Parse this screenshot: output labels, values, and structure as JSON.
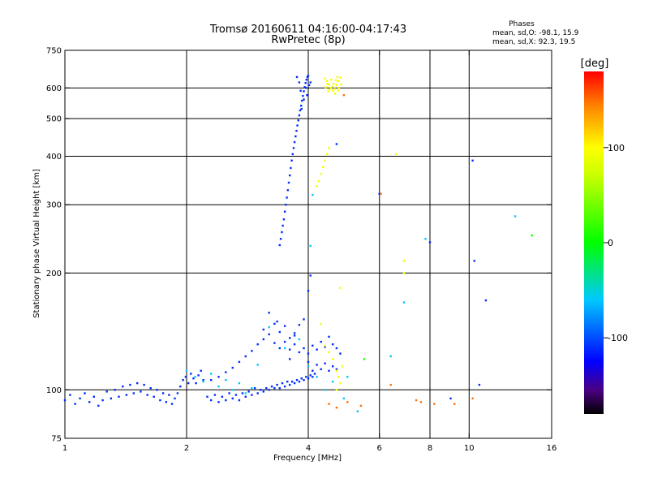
{
  "chart_data": {
    "type": "scatter",
    "title": "Tromsø 20160611 04:16:00-04:17:43",
    "subtitle": "RwPretec (8p)",
    "xlabel": "Frequency [MHz]",
    "ylabel": "Stationary phase Virtual Height [km]",
    "x_scale": "log",
    "y_scale": "log",
    "xlim": [
      1,
      16
    ],
    "ylim": [
      75,
      750
    ],
    "x_ticks": [
      {
        "value": 1,
        "label": "1"
      },
      {
        "value": 2,
        "label": "2"
      },
      {
        "value": 4,
        "label": "4"
      },
      {
        "value": 6,
        "label": "6"
      },
      {
        "value": 8,
        "label": "8"
      },
      {
        "value": 10,
        "label": "10"
      },
      {
        "value": 16,
        "label": "16"
      }
    ],
    "y_ticks": [
      {
        "value": 75,
        "label": "75"
      },
      {
        "value": 100,
        "label": "100"
      },
      {
        "value": 200,
        "label": "200"
      },
      {
        "value": 300,
        "label": "300"
      },
      {
        "value": 400,
        "label": "400"
      },
      {
        "value": 500,
        "label": "500"
      },
      {
        "value": 600,
        "label": "600"
      },
      {
        "value": 750,
        "label": "750"
      }
    ],
    "grid": true,
    "grid_x": [
      2,
      4,
      6,
      8,
      10
    ],
    "grid_y": [
      100,
      200,
      300,
      400,
      500,
      600
    ],
    "phase_stats": {
      "title": "Phases",
      "o_line": "mean, sd,O: -98.1, 15.9",
      "x_line": "mean, sd,X:  92.3, 19.5"
    },
    "colorbar": {
      "label": "[deg]",
      "range": [
        -180,
        180
      ],
      "ticks": [
        {
          "value": 100,
          "label": "100"
        },
        {
          "value": 0,
          "label": "0"
        },
        {
          "value": -100,
          "label": "-100"
        }
      ],
      "stops": [
        {
          "value": -180,
          "color": "#000000"
        },
        {
          "value": -155,
          "color": "#4b0082"
        },
        {
          "value": -125,
          "color": "#0000ff"
        },
        {
          "value": -60,
          "color": "#00c8ff"
        },
        {
          "value": 0,
          "color": "#00ff00"
        },
        {
          "value": 70,
          "color": "#c8ff00"
        },
        {
          "value": 100,
          "color": "#ffff00"
        },
        {
          "value": 145,
          "color": "#ff7f00"
        },
        {
          "value": 180,
          "color": "#ff0000"
        }
      ]
    },
    "series": [
      {
        "mode": "O",
        "phase_deg": -110,
        "points": [
          [
            1.0,
            94
          ],
          [
            1.03,
            97
          ],
          [
            1.06,
            92
          ],
          [
            1.09,
            95
          ],
          [
            1.12,
            98
          ],
          [
            1.15,
            93
          ],
          [
            1.18,
            96
          ],
          [
            1.21,
            91
          ],
          [
            1.24,
            94
          ],
          [
            1.27,
            99
          ],
          [
            1.3,
            95
          ],
          [
            1.33,
            100
          ],
          [
            1.36,
            96
          ],
          [
            1.39,
            102
          ],
          [
            1.42,
            97
          ],
          [
            1.45,
            103
          ],
          [
            1.48,
            98
          ],
          [
            1.51,
            104
          ],
          [
            1.54,
            99
          ],
          [
            1.57,
            103
          ],
          [
            1.6,
            97
          ],
          [
            1.63,
            101
          ],
          [
            1.66,
            96
          ],
          [
            1.69,
            100
          ],
          [
            1.72,
            94
          ],
          [
            1.75,
            98
          ],
          [
            1.78,
            93
          ],
          [
            1.81,
            97
          ],
          [
            1.84,
            92
          ],
          [
            1.87,
            95
          ],
          [
            1.9,
            98
          ],
          [
            1.93,
            102
          ],
          [
            1.96,
            106
          ],
          [
            1.99,
            108
          ],
          [
            2.02,
            104
          ],
          [
            2.05,
            110
          ],
          [
            2.08,
            107
          ],
          [
            2.11,
            104
          ],
          [
            2.14,
            109
          ],
          [
            2.17,
            112
          ],
          [
            2.2,
            106
          ],
          [
            2.25,
            96
          ],
          [
            2.3,
            94
          ],
          [
            2.35,
            97
          ],
          [
            2.4,
            93
          ],
          [
            2.45,
            96
          ],
          [
            2.5,
            94
          ],
          [
            2.55,
            98
          ],
          [
            2.6,
            95
          ],
          [
            2.65,
            97
          ],
          [
            2.7,
            94
          ],
          [
            2.75,
            98
          ],
          [
            2.8,
            96
          ],
          [
            2.85,
            99
          ],
          [
            2.9,
            97
          ],
          [
            2.95,
            101
          ],
          [
            3.0,
            98
          ],
          [
            3.05,
            100
          ],
          [
            3.1,
            99
          ],
          [
            3.15,
            101
          ],
          [
            3.2,
            100
          ],
          [
            3.25,
            102
          ],
          [
            3.3,
            101
          ],
          [
            3.35,
            103
          ],
          [
            3.4,
            101
          ],
          [
            3.45,
            104
          ],
          [
            3.5,
            102
          ],
          [
            3.55,
            105
          ],
          [
            3.6,
            103
          ],
          [
            3.65,
            105
          ],
          [
            3.7,
            104
          ],
          [
            3.75,
            106
          ],
          [
            3.8,
            105
          ],
          [
            3.85,
            107
          ],
          [
            3.9,
            106
          ],
          [
            3.95,
            108
          ],
          [
            4.0,
            107
          ],
          [
            4.05,
            109
          ],
          [
            4.1,
            108
          ],
          [
            4.15,
            110
          ],
          [
            2.3,
            106
          ],
          [
            2.4,
            108
          ],
          [
            2.5,
            111
          ],
          [
            2.6,
            114
          ],
          [
            2.7,
            118
          ],
          [
            2.8,
            122
          ],
          [
            2.9,
            126
          ],
          [
            3.0,
            131
          ],
          [
            3.1,
            135
          ],
          [
            3.2,
            139
          ],
          [
            3.3,
            132
          ],
          [
            3.4,
            128
          ],
          [
            3.5,
            133
          ],
          [
            3.6,
            127
          ],
          [
            3.7,
            131
          ],
          [
            3.8,
            125
          ],
          [
            3.2,
            158
          ],
          [
            3.3,
            148
          ],
          [
            3.4,
            141
          ],
          [
            3.5,
            146
          ],
          [
            3.6,
            136
          ],
          [
            3.7,
            140
          ],
          [
            3.9,
            128
          ],
          [
            4.0,
            124
          ],
          [
            4.1,
            130
          ],
          [
            4.2,
            127
          ],
          [
            4.3,
            133
          ],
          [
            4.4,
            129
          ],
          [
            4.5,
            137
          ],
          [
            4.6,
            131
          ],
          [
            4.7,
            128
          ],
          [
            4.8,
            124
          ],
          [
            4.0,
            118
          ],
          [
            4.1,
            112
          ],
          [
            4.2,
            116
          ],
          [
            4.3,
            113
          ],
          [
            4.4,
            117
          ],
          [
            4.5,
            112
          ],
          [
            4.6,
            115
          ],
          [
            4.7,
            113
          ],
          [
            3.9,
            152
          ],
          [
            4.0,
            180
          ],
          [
            4.05,
            197
          ],
          [
            3.6,
            120
          ],
          [
            3.7,
            138
          ],
          [
            3.8,
            147
          ],
          [
            3.35,
            150
          ],
          [
            3.1,
            143
          ],
          [
            3.4,
            236
          ],
          [
            3.42,
            245
          ],
          [
            3.44,
            255
          ],
          [
            3.46,
            265
          ],
          [
            3.48,
            275
          ],
          [
            3.5,
            288
          ],
          [
            3.52,
            300
          ],
          [
            3.54,
            313
          ],
          [
            3.56,
            327
          ],
          [
            3.58,
            342
          ],
          [
            3.6,
            357
          ],
          [
            3.62,
            373
          ],
          [
            3.64,
            390
          ],
          [
            3.66,
            405
          ],
          [
            3.68,
            420
          ],
          [
            3.7,
            435
          ],
          [
            3.72,
            450
          ],
          [
            3.74,
            465
          ],
          [
            3.76,
            480
          ],
          [
            3.78,
            495
          ],
          [
            3.8,
            510
          ],
          [
            3.82,
            525
          ],
          [
            3.84,
            540
          ],
          [
            3.86,
            556
          ],
          [
            3.88,
            572
          ],
          [
            3.9,
            588
          ],
          [
            3.92,
            603
          ],
          [
            3.94,
            618
          ],
          [
            3.96,
            630
          ],
          [
            3.98,
            640
          ],
          [
            4.0,
            645
          ],
          [
            3.95,
            600
          ],
          [
            3.9,
            560
          ],
          [
            3.85,
            530
          ],
          [
            3.97,
            575
          ],
          [
            4.02,
            610
          ],
          [
            4.05,
            620
          ],
          [
            3.8,
            620
          ],
          [
            3.83,
            590
          ],
          [
            3.75,
            640
          ],
          [
            4.7,
            430
          ],
          [
            6.0,
            320
          ],
          [
            10.2,
            390
          ],
          [
            10.3,
            215
          ],
          [
            11.0,
            170
          ],
          [
            9.0,
            95
          ],
          [
            10.6,
            103
          ],
          [
            8.0,
            240
          ]
        ]
      },
      {
        "mode": "X",
        "phase_deg": 95,
        "points": [
          [
            4.4,
            635
          ],
          [
            4.45,
            625
          ],
          [
            4.5,
            612
          ],
          [
            4.55,
            600
          ],
          [
            4.6,
            590
          ],
          [
            4.65,
            597
          ],
          [
            4.7,
            610
          ],
          [
            4.75,
            625
          ],
          [
            4.8,
            638
          ],
          [
            4.42,
            602
          ],
          [
            4.48,
            588
          ],
          [
            4.52,
            595
          ],
          [
            4.58,
            605
          ],
          [
            4.62,
            615
          ],
          [
            4.68,
            628
          ],
          [
            4.72,
            640
          ],
          [
            4.76,
            600
          ],
          [
            4.82,
            612
          ],
          [
            4.46,
            615
          ],
          [
            4.56,
            630
          ],
          [
            4.66,
            580
          ],
          [
            4.74,
            590
          ],
          [
            4.2,
            335
          ],
          [
            4.25,
            345
          ],
          [
            4.3,
            360
          ],
          [
            4.35,
            375
          ],
          [
            4.4,
            390
          ],
          [
            4.45,
            405
          ],
          [
            4.5,
            420
          ],
          [
            4.4,
            130
          ],
          [
            4.5,
            125
          ],
          [
            4.6,
            120
          ],
          [
            4.7,
            112
          ],
          [
            4.75,
            108
          ],
          [
            4.8,
            104
          ],
          [
            4.7,
            100
          ],
          [
            4.85,
            115
          ],
          [
            6.6,
            405
          ],
          [
            6.9,
            215
          ],
          [
            6.9,
            200
          ],
          [
            4.8,
            183
          ],
          [
            4.3,
            148
          ]
        ]
      },
      {
        "mode": "other",
        "phase_deg": -60,
        "points": [
          [
            2.0,
            112
          ],
          [
            2.1,
            108
          ],
          [
            2.2,
            105
          ],
          [
            2.3,
            110
          ],
          [
            2.4,
            102
          ],
          [
            2.5,
            106
          ],
          [
            2.6,
            100
          ],
          [
            2.7,
            104
          ],
          [
            2.8,
            98
          ],
          [
            2.9,
            101
          ],
          [
            3.0,
            116
          ],
          [
            3.2,
            145
          ],
          [
            3.5,
            128
          ],
          [
            3.8,
            135
          ],
          [
            4.0,
            115
          ],
          [
            4.2,
            108
          ],
          [
            4.4,
            100
          ],
          [
            4.6,
            105
          ],
          [
            5.0,
            108
          ],
          [
            4.1,
            318
          ],
          [
            4.05,
            235
          ],
          [
            6.4,
            122
          ],
          [
            6.9,
            168
          ],
          [
            7.8,
            245
          ],
          [
            13.0,
            280
          ],
          [
            4.9,
            95
          ],
          [
            5.3,
            88
          ]
        ]
      },
      {
        "mode": "other",
        "phase_deg": 150,
        "points": [
          [
            4.5,
            92
          ],
          [
            4.7,
            90
          ],
          [
            5.0,
            93
          ],
          [
            5.4,
            91
          ],
          [
            6.4,
            103
          ],
          [
            7.4,
            94
          ],
          [
            7.6,
            93
          ],
          [
            8.2,
            92
          ],
          [
            9.2,
            92
          ],
          [
            10.2,
            95
          ],
          [
            4.9,
            575
          ],
          [
            6.05,
            320
          ]
        ]
      },
      {
        "mode": "other",
        "phase_deg": 10,
        "points": [
          [
            14.3,
            250
          ],
          [
            5.5,
            120
          ]
        ]
      }
    ]
  }
}
